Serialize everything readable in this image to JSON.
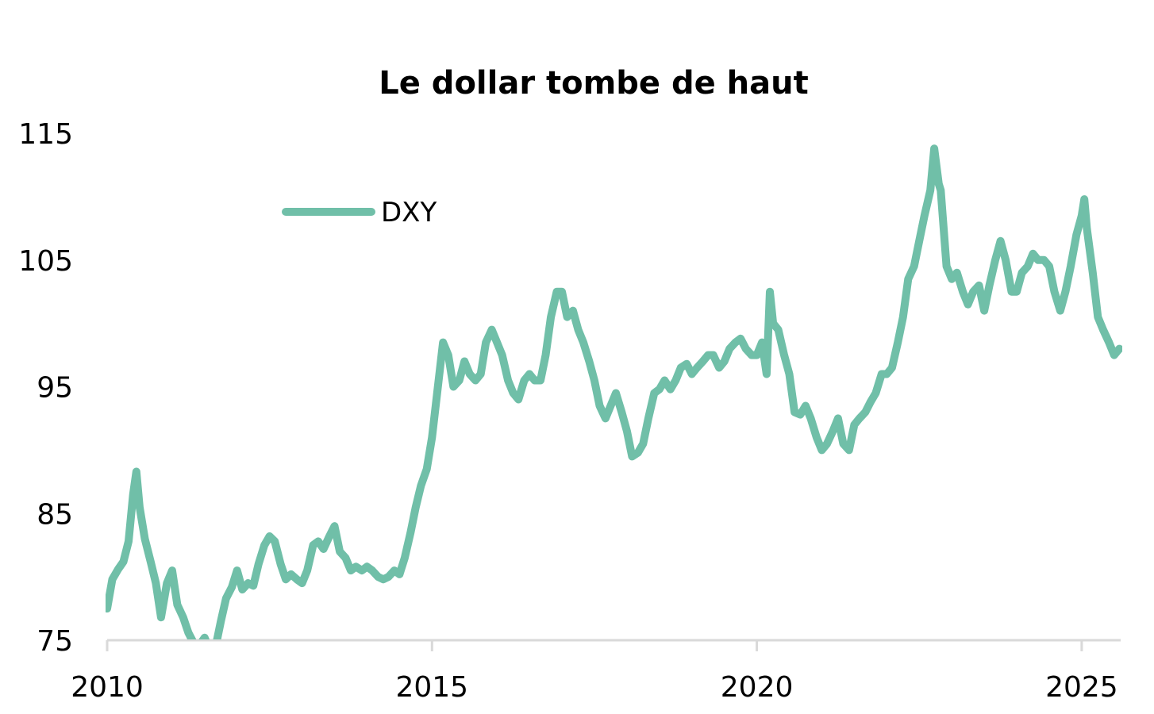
{
  "chart_data": {
    "type": "line",
    "title": "Le dollar tombe de haut",
    "xlabel": "",
    "ylabel": "",
    "xlim": [
      2010,
      2025.6
    ],
    "ylim": [
      75,
      115
    ],
    "x_ticks": [
      2010,
      2015,
      2020,
      2025
    ],
    "x_tick_labels": [
      "2010",
      "2015",
      "2020",
      "2025"
    ],
    "y_ticks": [
      75,
      85,
      95,
      105,
      115
    ],
    "y_tick_labels": [
      "75",
      "85",
      "95",
      "105",
      "115"
    ],
    "grid": false,
    "legend": {
      "position": "top-left",
      "entries": [
        "DXY"
      ]
    },
    "series": [
      {
        "name": "DXY",
        "color": "#70BFA8",
        "points": [
          [
            2010.0,
            77.5
          ],
          [
            2010.08,
            79.8
          ],
          [
            2010.17,
            80.6
          ],
          [
            2010.25,
            81.2
          ],
          [
            2010.33,
            82.8
          ],
          [
            2010.4,
            86.5
          ],
          [
            2010.45,
            88.3
          ],
          [
            2010.5,
            85.5
          ],
          [
            2010.58,
            83.0
          ],
          [
            2010.67,
            81.2
          ],
          [
            2010.75,
            79.5
          ],
          [
            2010.83,
            76.8
          ],
          [
            2010.92,
            79.5
          ],
          [
            2011.0,
            80.5
          ],
          [
            2011.08,
            77.8
          ],
          [
            2011.17,
            76.8
          ],
          [
            2011.25,
            75.6
          ],
          [
            2011.33,
            74.8
          ],
          [
            2011.42,
            74.6
          ],
          [
            2011.5,
            75.2
          ],
          [
            2011.58,
            74.2
          ],
          [
            2011.67,
            74.5
          ],
          [
            2011.75,
            76.5
          ],
          [
            2011.83,
            78.3
          ],
          [
            2011.92,
            79.2
          ],
          [
            2012.0,
            80.5
          ],
          [
            2012.08,
            79.0
          ],
          [
            2012.17,
            79.5
          ],
          [
            2012.25,
            79.3
          ],
          [
            2012.33,
            81.0
          ],
          [
            2012.42,
            82.5
          ],
          [
            2012.5,
            83.2
          ],
          [
            2012.58,
            82.8
          ],
          [
            2012.67,
            81.0
          ],
          [
            2012.75,
            79.8
          ],
          [
            2012.83,
            80.2
          ],
          [
            2012.92,
            79.8
          ],
          [
            2013.0,
            79.5
          ],
          [
            2013.08,
            80.5
          ],
          [
            2013.17,
            82.5
          ],
          [
            2013.25,
            82.8
          ],
          [
            2013.33,
            82.2
          ],
          [
            2013.42,
            83.2
          ],
          [
            2013.5,
            84.0
          ],
          [
            2013.58,
            82.0
          ],
          [
            2013.67,
            81.5
          ],
          [
            2013.75,
            80.5
          ],
          [
            2013.83,
            80.8
          ],
          [
            2013.92,
            80.5
          ],
          [
            2014.0,
            80.8
          ],
          [
            2014.08,
            80.5
          ],
          [
            2014.17,
            80.0
          ],
          [
            2014.25,
            79.8
          ],
          [
            2014.33,
            80.0
          ],
          [
            2014.42,
            80.5
          ],
          [
            2014.5,
            80.2
          ],
          [
            2014.58,
            81.5
          ],
          [
            2014.67,
            83.5
          ],
          [
            2014.75,
            85.5
          ],
          [
            2014.83,
            87.2
          ],
          [
            2014.92,
            88.5
          ],
          [
            2015.0,
            91.0
          ],
          [
            2015.08,
            94.5
          ],
          [
            2015.17,
            98.5
          ],
          [
            2015.25,
            97.5
          ],
          [
            2015.33,
            95.0
          ],
          [
            2015.42,
            95.5
          ],
          [
            2015.5,
            97.0
          ],
          [
            2015.58,
            96.0
          ],
          [
            2015.67,
            95.5
          ],
          [
            2015.75,
            96.0
          ],
          [
            2015.83,
            98.5
          ],
          [
            2015.92,
            99.5
          ],
          [
            2016.0,
            98.5
          ],
          [
            2016.08,
            97.5
          ],
          [
            2016.17,
            95.5
          ],
          [
            2016.25,
            94.5
          ],
          [
            2016.33,
            94.0
          ],
          [
            2016.42,
            95.5
          ],
          [
            2016.5,
            96.0
          ],
          [
            2016.58,
            95.5
          ],
          [
            2016.67,
            95.5
          ],
          [
            2016.75,
            97.5
          ],
          [
            2016.83,
            100.5
          ],
          [
            2016.92,
            102.5
          ],
          [
            2017.0,
            102.5
          ],
          [
            2017.08,
            100.5
          ],
          [
            2017.17,
            101.0
          ],
          [
            2017.25,
            99.5
          ],
          [
            2017.33,
            98.5
          ],
          [
            2017.42,
            97.0
          ],
          [
            2017.5,
            95.5
          ],
          [
            2017.58,
            93.5
          ],
          [
            2017.67,
            92.5
          ],
          [
            2017.75,
            93.5
          ],
          [
            2017.83,
            94.5
          ],
          [
            2017.92,
            93.0
          ],
          [
            2018.0,
            91.5
          ],
          [
            2018.08,
            89.5
          ],
          [
            2018.17,
            89.8
          ],
          [
            2018.25,
            90.5
          ],
          [
            2018.33,
            92.5
          ],
          [
            2018.42,
            94.5
          ],
          [
            2018.5,
            94.8
          ],
          [
            2018.58,
            95.5
          ],
          [
            2018.67,
            94.8
          ],
          [
            2018.75,
            95.5
          ],
          [
            2018.83,
            96.5
          ],
          [
            2018.92,
            96.8
          ],
          [
            2019.0,
            96.0
          ],
          [
            2019.08,
            96.5
          ],
          [
            2019.17,
            97.0
          ],
          [
            2019.25,
            97.5
          ],
          [
            2019.33,
            97.5
          ],
          [
            2019.42,
            96.5
          ],
          [
            2019.5,
            97.0
          ],
          [
            2019.58,
            98.0
          ],
          [
            2019.67,
            98.5
          ],
          [
            2019.75,
            98.8
          ],
          [
            2019.83,
            98.0
          ],
          [
            2019.92,
            97.5
          ],
          [
            2020.0,
            97.5
          ],
          [
            2020.08,
            98.5
          ],
          [
            2020.15,
            96.0
          ],
          [
            2020.2,
            102.5
          ],
          [
            2020.25,
            100.0
          ],
          [
            2020.33,
            99.5
          ],
          [
            2020.42,
            97.5
          ],
          [
            2020.5,
            96.0
          ],
          [
            2020.58,
            93.0
          ],
          [
            2020.67,
            92.8
          ],
          [
            2020.75,
            93.5
          ],
          [
            2020.83,
            92.5
          ],
          [
            2020.92,
            91.0
          ],
          [
            2021.0,
            90.0
          ],
          [
            2021.08,
            90.5
          ],
          [
            2021.17,
            91.5
          ],
          [
            2021.25,
            92.5
          ],
          [
            2021.33,
            90.5
          ],
          [
            2021.42,
            90.0
          ],
          [
            2021.5,
            92.0
          ],
          [
            2021.58,
            92.5
          ],
          [
            2021.67,
            93.0
          ],
          [
            2021.75,
            93.8
          ],
          [
            2021.83,
            94.5
          ],
          [
            2021.92,
            96.0
          ],
          [
            2022.0,
            96.0
          ],
          [
            2022.08,
            96.5
          ],
          [
            2022.17,
            98.5
          ],
          [
            2022.25,
            100.5
          ],
          [
            2022.33,
            103.5
          ],
          [
            2022.42,
            104.5
          ],
          [
            2022.5,
            106.5
          ],
          [
            2022.58,
            108.5
          ],
          [
            2022.67,
            110.5
          ],
          [
            2022.73,
            113.8
          ],
          [
            2022.8,
            111.0
          ],
          [
            2022.83,
            110.5
          ],
          [
            2022.92,
            104.5
          ],
          [
            2023.0,
            103.5
          ],
          [
            2023.08,
            104.0
          ],
          [
            2023.17,
            102.5
          ],
          [
            2023.25,
            101.5
          ],
          [
            2023.33,
            102.5
          ],
          [
            2023.42,
            103.0
          ],
          [
            2023.5,
            101.0
          ],
          [
            2023.58,
            103.0
          ],
          [
            2023.67,
            105.0
          ],
          [
            2023.75,
            106.5
          ],
          [
            2023.83,
            105.0
          ],
          [
            2023.92,
            102.5
          ],
          [
            2024.0,
            102.5
          ],
          [
            2024.08,
            104.0
          ],
          [
            2024.17,
            104.5
          ],
          [
            2024.25,
            105.5
          ],
          [
            2024.33,
            105.0
          ],
          [
            2024.42,
            105.0
          ],
          [
            2024.5,
            104.5
          ],
          [
            2024.58,
            102.5
          ],
          [
            2024.67,
            101.0
          ],
          [
            2024.75,
            102.5
          ],
          [
            2024.83,
            104.5
          ],
          [
            2024.92,
            107.0
          ],
          [
            2025.0,
            108.5
          ],
          [
            2025.04,
            109.8
          ],
          [
            2025.08,
            107.5
          ],
          [
            2025.17,
            104.0
          ],
          [
            2025.25,
            100.5
          ],
          [
            2025.33,
            99.5
          ],
          [
            2025.42,
            98.5
          ],
          [
            2025.5,
            97.5
          ],
          [
            2025.58,
            98.0
          ]
        ]
      }
    ]
  }
}
